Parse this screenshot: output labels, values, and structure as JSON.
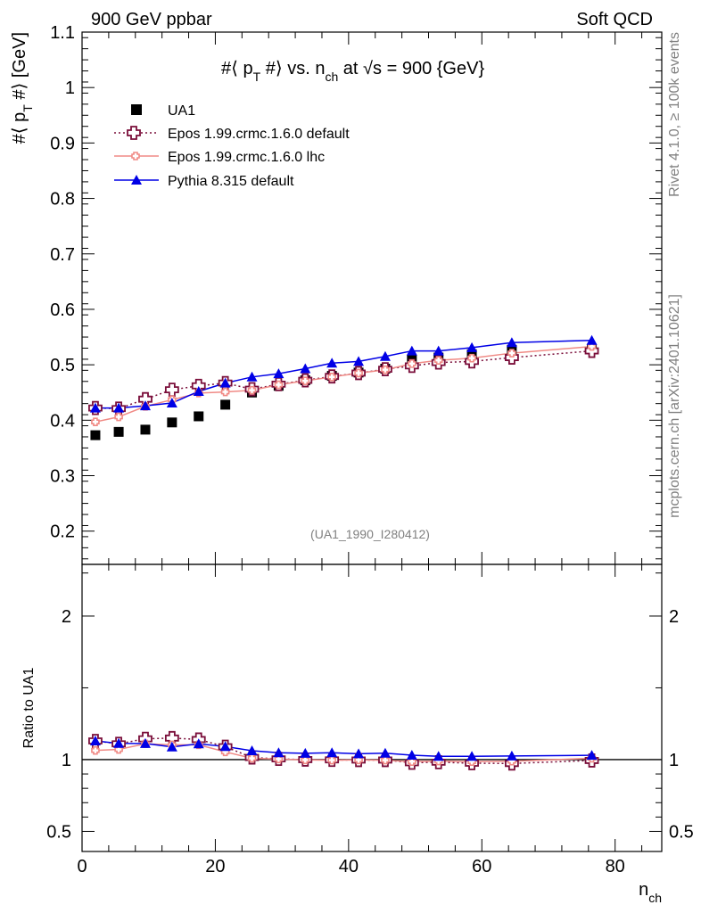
{
  "header": {
    "left_label": "900 GeV ppbar",
    "right_label": "Soft QCD"
  },
  "side_labels": {
    "rivet": "Rivet 4.1.0, ≥ 100k events",
    "mcplots": "mcplots.cern.ch [arXiv:2401.10621]"
  },
  "analysis_id": "(UA1_1990_I280412)",
  "colors": {
    "data": "#000000",
    "epos_default": "#7a0e3a",
    "epos_lhc": "#f08a85",
    "pythia": "#0000e6"
  },
  "chart_data": [
    {
      "type": "scatter",
      "panel": "main",
      "title": "#⟨ p_T #⟩ vs. n_ch at √s = 900 {GeV}",
      "title_parts": {
        "a": "#⟨ p",
        "sub1": "T",
        "b": " #⟩ vs. n",
        "sub2": "ch",
        "c": " at ",
        "sqrt": "√s",
        "d": " = 900 {GeV}"
      },
      "ylabel": "#⟨ p_T #⟩ [GeV]",
      "ylabel_parts": {
        "a": "#⟨ p",
        "sub": "T",
        "b": " #⟩ [GeV]"
      },
      "xlabel": "",
      "xlim": [
        0,
        87
      ],
      "ylim": [
        0.14,
        1.1
      ],
      "yticks": [
        0.2,
        0.3,
        0.4,
        0.5,
        0.6,
        0.7,
        0.8,
        0.9,
        1,
        1.1
      ],
      "ytick_labels": [
        "0.2",
        "0.3",
        "0.4",
        "0.5",
        "0.6",
        "0.7",
        "0.8",
        "0.9",
        "1",
        "1.1"
      ],
      "legend": [
        "UA1",
        "Epos 1.99.crmc.1.6.0 default",
        "Epos 1.99.crmc.1.6.0 lhc",
        "Pythia 8.315 default"
      ],
      "legend_position": "top-left",
      "x": [
        2,
        5.5,
        9.5,
        13.5,
        17.5,
        21.5,
        25.5,
        29.5,
        33.5,
        37.5,
        41.5,
        45.5,
        49.5,
        53.5,
        58.5,
        64.5,
        76.5
      ],
      "series": [
        {
          "name": "UA1",
          "marker": "square",
          "values": [
            0.373,
            0.379,
            0.383,
            0.396,
            0.407,
            0.428,
            0.45,
            0.462,
            0.472,
            0.48,
            0.486,
            0.493,
            0.509,
            0.513,
            0.519,
            0.527,
            0.528
          ]
        },
        {
          "name": "Epos 1.99.crmc.1.6.0 default",
          "marker": "cross-open",
          "line": "dotted",
          "values": [
            0.422,
            0.421,
            0.438,
            0.455,
            0.462,
            0.467,
            0.456,
            0.465,
            0.472,
            0.479,
            0.485,
            0.492,
            0.498,
            0.504,
            0.506,
            0.513,
            0.525
          ]
        },
        {
          "name": "Epos 1.99.crmc.1.6.0 lhc",
          "marker": "cross-small",
          "line": "solid",
          "values": [
            0.397,
            0.406,
            0.425,
            0.437,
            0.449,
            0.451,
            0.454,
            0.464,
            0.471,
            0.478,
            0.485,
            0.491,
            0.502,
            0.508,
            0.512,
            0.521,
            0.533
          ]
        },
        {
          "name": "Pythia 8.315 default",
          "marker": "triangle",
          "line": "solid",
          "values": [
            0.422,
            0.422,
            0.426,
            0.431,
            0.452,
            0.467,
            0.478,
            0.484,
            0.493,
            0.503,
            0.506,
            0.515,
            0.525,
            0.525,
            0.531,
            0.54,
            0.544
          ]
        }
      ]
    },
    {
      "type": "line",
      "panel": "ratio",
      "ylabel": "Ratio to UA1",
      "xlabel": "n_ch",
      "xlabel_parts": {
        "a": "n",
        "sub": "ch"
      },
      "xlim": [
        0,
        87
      ],
      "ylim": [
        0.36,
        2.36
      ],
      "yticks": [
        0.5,
        1,
        2
      ],
      "ytick_labels": [
        "0.5",
        "1",
        "2"
      ],
      "xticks": [
        0,
        20,
        40,
        60,
        80
      ],
      "xtick_labels": [
        "0",
        "20",
        "40",
        "60",
        "80"
      ],
      "reference_line": 1,
      "x": [
        2,
        5.5,
        9.5,
        13.5,
        17.5,
        21.5,
        25.5,
        29.5,
        33.5,
        37.5,
        41.5,
        45.5,
        49.5,
        53.5,
        58.5,
        64.5,
        76.5
      ],
      "series": [
        {
          "name": "Epos 1.99.crmc.1.6.0 default",
          "values": [
            1.13,
            1.11,
            1.145,
            1.15,
            1.14,
            1.09,
            1.015,
            1.005,
            1.0,
            0.998,
            0.997,
            0.997,
            0.978,
            0.982,
            0.975,
            0.973,
            0.994
          ]
        },
        {
          "name": "Epos 1.99.crmc.1.6.0 lhc",
          "values": [
            1.064,
            1.071,
            1.11,
            1.103,
            1.103,
            1.054,
            1.009,
            1.004,
            0.998,
            0.996,
            0.998,
            0.996,
            0.986,
            0.99,
            0.986,
            0.989,
            1.009
          ]
        },
        {
          "name": "Pythia 8.315 default",
          "values": [
            1.13,
            1.113,
            1.112,
            1.088,
            1.11,
            1.091,
            1.062,
            1.048,
            1.044,
            1.048,
            1.041,
            1.045,
            1.031,
            1.023,
            1.023,
            1.025,
            1.03
          ]
        }
      ]
    }
  ]
}
